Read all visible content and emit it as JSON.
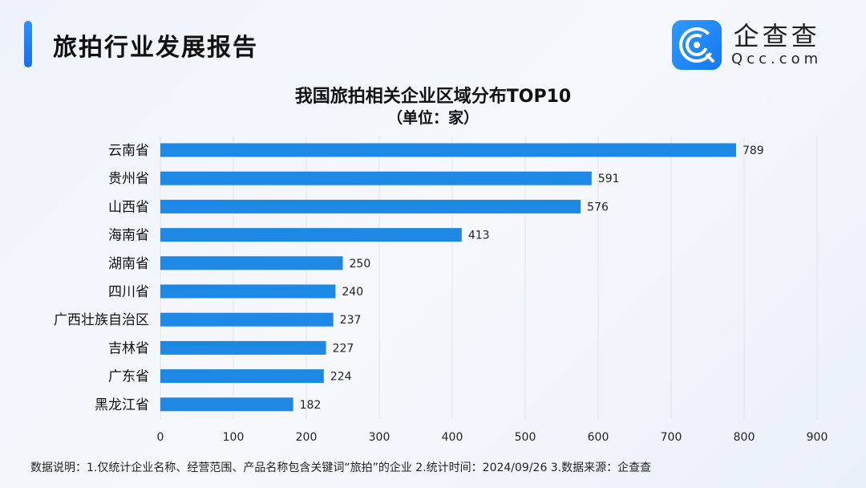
{
  "header": {
    "title": "旅拍行业发展报告"
  },
  "logo": {
    "cn": "企查查",
    "en": "Qcc.com",
    "color": "#1a7ff2"
  },
  "chart_data": {
    "type": "bar",
    "orientation": "horizontal",
    "title": "我国旅拍相关企业区域分布TOP10",
    "subtitle": "（单位：家）",
    "categories": [
      "云南省",
      "贵州省",
      "山西省",
      "海南省",
      "湖南省",
      "四川省",
      "广西壮族自治区",
      "吉林省",
      "广东省",
      "黑龙江省"
    ],
    "values": [
      789,
      591,
      576,
      413,
      250,
      240,
      237,
      227,
      224,
      182
    ],
    "xlim": [
      0,
      900
    ],
    "xticks": [
      0,
      100,
      200,
      300,
      400,
      500,
      600,
      700,
      800,
      900
    ],
    "grid": true,
    "bar_color": "#1f88e5"
  },
  "footer": {
    "note": "数据说明：1.仅统计企业名称、经营范围、产品名称包含关键词“旅拍”的企业   2.统计时间：2024/09/26    3.数据来源：企查查"
  }
}
